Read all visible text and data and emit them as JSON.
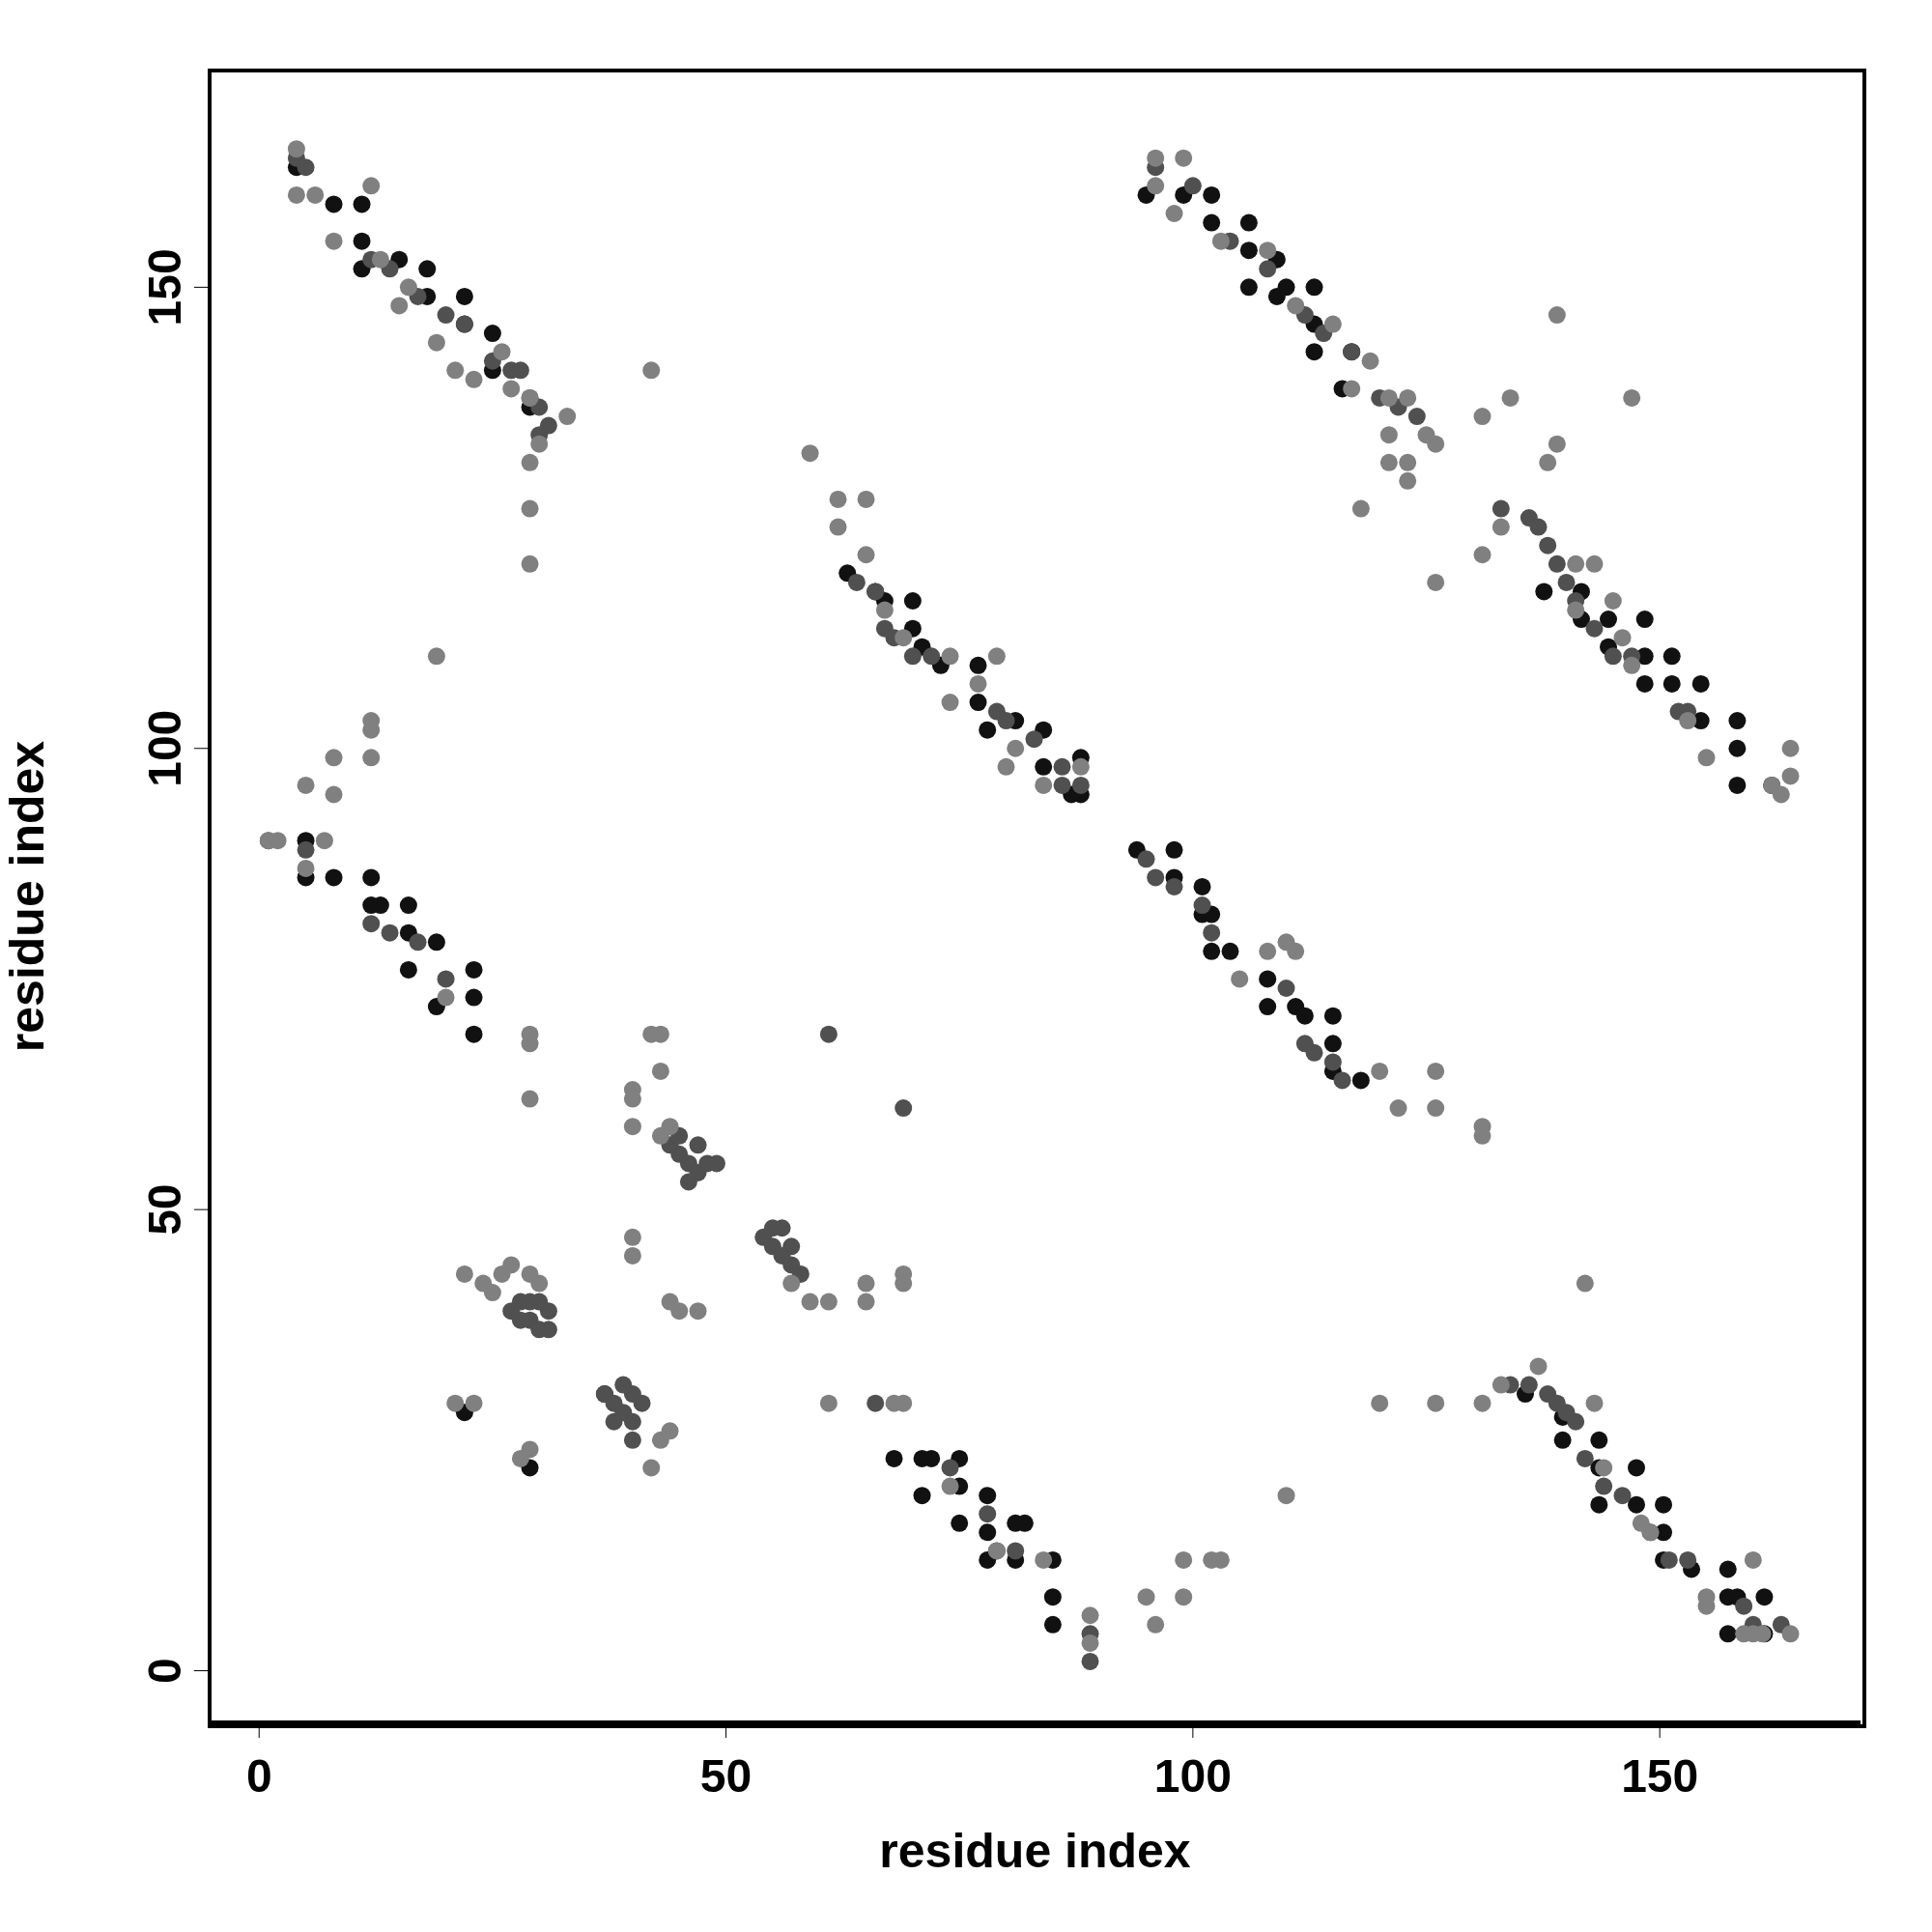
{
  "chart_data": {
    "type": "scatter",
    "xlabel": "residue index",
    "ylabel": "residue index",
    "xlim": [
      -5.3,
      171.5
    ],
    "ylim": [
      -5.6,
      173.5
    ],
    "xticks": [
      0,
      50,
      100,
      150
    ],
    "yticks": [
      0,
      50,
      100,
      150
    ],
    "marker": "circle",
    "series": [
      {
        "color": "#111111",
        "x": [
          4,
          8,
          11,
          11,
          11,
          15,
          18,
          18,
          22,
          22,
          25,
          25,
          29,
          63,
          66,
          67,
          70,
          70,
          71,
          73,
          77,
          77,
          78,
          81,
          84,
          84,
          88,
          88,
          87,
          95,
          99,
          102,
          102,
          106,
          106,
          106,
          109,
          109,
          110,
          113,
          113,
          113,
          117,
          116,
          137.6,
          141.6,
          141.6,
          144.5,
          144.5,
          148.4,
          148.4,
          148.4,
          151.3,
          151.3,
          154.4,
          154.4,
          158.3,
          158.3,
          158.3,
          162,
          5,
          5,
          8,
          12,
          12,
          13,
          16,
          16,
          16,
          19,
          19,
          23,
          23,
          23,
          94,
          98,
          98,
          101,
          101,
          102,
          102,
          104,
          108,
          108,
          111,
          112,
          115,
          115,
          115,
          118,
          68,
          71,
          72,
          75,
          71,
          75,
          75,
          78,
          78,
          81,
          78,
          81,
          82,
          85,
          85,
          85,
          135.6,
          139.6,
          139.6,
          143.5,
          143.5,
          143.5,
          147.5,
          147.5,
          150.4,
          150.4,
          150.4,
          153.4,
          157.3,
          157.3,
          158.3,
          157.3,
          161.2,
          161.2,
          29,
          22,
          37
        ],
        "values": [
          163,
          159,
          159,
          155,
          152,
          153,
          152,
          149,
          149,
          146,
          145,
          141,
          137,
          119,
          117,
          116,
          116,
          113,
          111,
          109,
          109,
          105,
          102,
          103,
          102,
          98,
          99,
          95,
          95,
          160,
          160,
          160,
          157,
          157,
          154,
          150,
          153,
          149,
          150,
          150,
          146,
          143,
          143,
          139,
          117,
          117,
          114,
          114,
          111,
          114,
          110,
          107,
          110,
          107,
          107,
          103,
          103,
          100,
          96,
          96,
          90,
          86,
          86,
          86,
          83,
          83,
          83,
          80,
          76,
          79,
          72,
          76,
          73,
          69,
          89,
          89,
          86,
          85,
          82,
          82,
          78,
          78,
          75,
          72,
          72,
          71,
          71,
          68,
          65,
          64,
          23,
          23,
          23,
          23,
          19,
          20,
          16,
          19,
          15,
          16,
          12,
          12,
          16,
          12,
          8,
          5,
          30,
          27.5,
          25,
          25,
          22,
          18,
          22,
          18,
          18,
          15,
          12,
          11,
          11,
          8,
          8,
          4,
          4,
          8,
          22,
          28,
          30
        ]
      },
      {
        "color": "#505050",
        "x": [
          28,
          29,
          30,
          31,
          31,
          30,
          29,
          28,
          27,
          37,
          38,
          39,
          40,
          40,
          41,
          39,
          40,
          38,
          44,
          45,
          46,
          47,
          48,
          47,
          45,
          46,
          49,
          54,
          55,
          56,
          57,
          58,
          56,
          55,
          57,
          61,
          69,
          66,
          4,
          5,
          12,
          14,
          17,
          20,
          22,
          25,
          27,
          28,
          29,
          30,
          31,
          30,
          96,
          100,
          104,
          108,
          112,
          114,
          117,
          120,
          122,
          124,
          133,
          136,
          137,
          138,
          139,
          140,
          141,
          143,
          145,
          147,
          152,
          153,
          64,
          66,
          67,
          68,
          70,
          72,
          79,
          80,
          83,
          86,
          86,
          88,
          1,
          5,
          12,
          14,
          17,
          20,
          95,
          96,
          98,
          101,
          102,
          110,
          112,
          113,
          115,
          116,
          74,
          78,
          79,
          81,
          89,
          89,
          134,
          136,
          138,
          139,
          140,
          141,
          142,
          144,
          146,
          149,
          151,
          153,
          159,
          160,
          163
        ],
        "values": [
          40,
          38,
          37,
          37,
          39,
          40,
          40,
          38,
          39,
          30,
          29,
          28,
          27,
          30,
          29,
          31,
          25,
          27,
          57,
          56,
          55,
          54,
          55,
          57,
          58,
          53,
          55,
          47,
          46,
          45,
          44,
          43,
          48,
          48,
          46,
          69,
          61,
          29,
          164,
          163,
          153,
          152,
          149,
          147,
          146,
          142,
          141,
          141,
          138,
          137,
          135,
          134,
          163,
          161,
          155,
          152,
          147,
          145,
          143,
          138,
          137,
          136,
          126,
          125,
          124,
          122,
          120,
          118,
          116,
          113,
          110,
          110,
          104,
          104,
          118,
          117,
          113,
          112,
          110,
          110,
          104,
          103,
          101,
          98,
          96,
          96,
          90,
          89,
          81,
          80,
          79,
          75,
          88,
          86,
          85,
          83,
          80,
          74,
          68,
          67,
          66,
          64,
          22,
          17,
          13,
          13,
          4,
          1,
          31,
          31,
          30,
          29,
          28,
          27,
          23,
          20,
          19,
          15,
          12,
          12,
          7,
          5,
          5
        ]
      },
      {
        "color": "#808080",
        "x": [
          4,
          4,
          6,
          8,
          12,
          13,
          16,
          15,
          19,
          21,
          23,
          26,
          27,
          29,
          30,
          29,
          29,
          29,
          33,
          42,
          59,
          62,
          65,
          62,
          65,
          67,
          69,
          74,
          79,
          77,
          74,
          81,
          80,
          84,
          88,
          96,
          96,
          99,
          98,
          103,
          108,
          111,
          115,
          119,
          117,
          121,
          123,
          121,
          125,
          121,
          123,
          123,
          118,
          126,
          126,
          131,
          131,
          133,
          134,
          138,
          139,
          139,
          147,
          141,
          143,
          141,
          145,
          146,
          147,
          153,
          155,
          162,
          163,
          164,
          164,
          1,
          2,
          7,
          5,
          5,
          8,
          8,
          12,
          12,
          12,
          19,
          20,
          29,
          29,
          29,
          40,
          40,
          40,
          43,
          43,
          42,
          43,
          44,
          47,
          45,
          44,
          57,
          59,
          61,
          65,
          65,
          69,
          69,
          21,
          23,
          22,
          24,
          26,
          27,
          25,
          29,
          30,
          28,
          29,
          43,
          42,
          44,
          40,
          40,
          61,
          69,
          68,
          74,
          79,
          84,
          89,
          89,
          95,
          96,
          99,
          99,
          102,
          103,
          110,
          105,
          108,
          110,
          111,
          120,
          122,
          126,
          126,
          131,
          131,
          120,
          126,
          131,
          133,
          137,
          142,
          143,
          144,
          148,
          149,
          155,
          155,
          160,
          159,
          160,
          161,
          164
        ],
        "values": [
          165,
          160,
          160,
          155,
          161,
          153,
          150,
          148,
          144,
          141,
          140,
          143,
          139,
          138,
          133,
          131,
          126,
          120,
          136,
          141,
          132,
          127,
          127,
          124,
          121,
          115,
          112,
          110,
          110,
          107,
          105,
          100,
          98,
          96,
          98,
          164,
          161,
          164,
          158,
          155,
          154,
          148,
          146,
          142,
          139,
          138,
          138,
          134,
          134,
          131,
          131,
          129,
          126,
          133,
          118,
          121,
          136,
          124,
          138,
          131,
          147,
          133,
          138,
          120,
          120,
          115,
          116,
          112,
          109,
          103,
          99,
          96,
          95,
          97,
          100,
          90,
          90,
          90,
          87,
          96,
          95,
          99,
          99,
          102,
          103,
          110,
          73,
          69,
          68,
          62,
          63,
          62,
          59,
          69,
          65,
          69,
          58,
          59,
          39,
          39,
          40,
          42,
          40,
          40,
          42,
          40,
          43,
          42,
          29,
          29,
          43,
          42,
          43,
          44,
          41,
          43,
          42,
          23,
          24,
          25,
          22,
          26,
          45,
          47,
          29,
          29,
          29,
          20,
          13,
          12,
          6,
          3,
          8,
          5,
          8,
          12,
          12,
          12,
          19,
          75,
          78,
          79,
          78,
          65,
          61,
          61,
          65,
          59,
          58,
          29,
          29,
          29,
          31,
          33,
          42,
          29,
          22,
          16,
          15,
          7,
          8,
          12,
          4,
          4,
          4,
          4
        ]
      }
    ]
  }
}
